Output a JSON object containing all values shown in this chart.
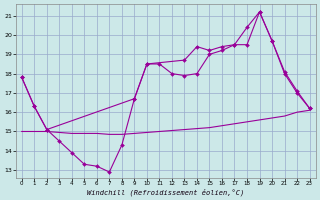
{
  "background_color": "#cce8e8",
  "grid_color": "#99aacc",
  "line_color": "#990099",
  "xlabel": "Windchill (Refroidissement éolien,°C)",
  "xlim_min": -0.5,
  "xlim_max": 23.5,
  "ylim_min": 12.6,
  "ylim_max": 21.6,
  "yticks": [
    13,
    14,
    15,
    16,
    17,
    18,
    19,
    20,
    21
  ],
  "xticks": [
    0,
    1,
    2,
    3,
    4,
    5,
    6,
    7,
    8,
    9,
    10,
    11,
    12,
    13,
    14,
    15,
    16,
    17,
    18,
    19,
    20,
    21,
    22,
    23
  ],
  "line1_x": [
    0,
    1,
    2,
    3,
    4,
    5,
    6,
    7,
    8,
    9,
    10,
    11,
    12,
    13,
    14,
    15,
    16,
    17,
    18,
    19,
    20,
    21,
    22,
    23
  ],
  "line1_y": [
    17.8,
    16.3,
    15.1,
    14.5,
    13.9,
    13.3,
    13.2,
    12.9,
    14.3,
    16.7,
    18.5,
    18.5,
    18.0,
    17.9,
    18.0,
    19.0,
    19.2,
    19.5,
    19.5,
    21.2,
    19.7,
    18.0,
    17.0,
    16.2
  ],
  "line2_x": [
    0,
    1,
    2,
    9,
    10,
    13,
    14,
    15,
    16,
    17,
    18,
    19,
    20,
    21,
    22,
    23
  ],
  "line2_y": [
    17.8,
    16.3,
    15.1,
    16.7,
    18.5,
    18.7,
    19.4,
    19.2,
    19.4,
    19.5,
    20.4,
    21.2,
    19.7,
    18.1,
    17.1,
    16.2
  ],
  "line3_x": [
    0,
    1,
    2,
    3,
    4,
    5,
    6,
    7,
    8,
    9,
    10,
    11,
    12,
    13,
    14,
    15,
    16,
    17,
    18,
    19,
    20,
    21,
    22,
    23
  ],
  "line3_y": [
    15.0,
    15.0,
    15.0,
    14.95,
    14.9,
    14.9,
    14.9,
    14.85,
    14.85,
    14.9,
    14.95,
    15.0,
    15.05,
    15.1,
    15.15,
    15.2,
    15.3,
    15.4,
    15.5,
    15.6,
    15.7,
    15.8,
    16.0,
    16.1
  ]
}
